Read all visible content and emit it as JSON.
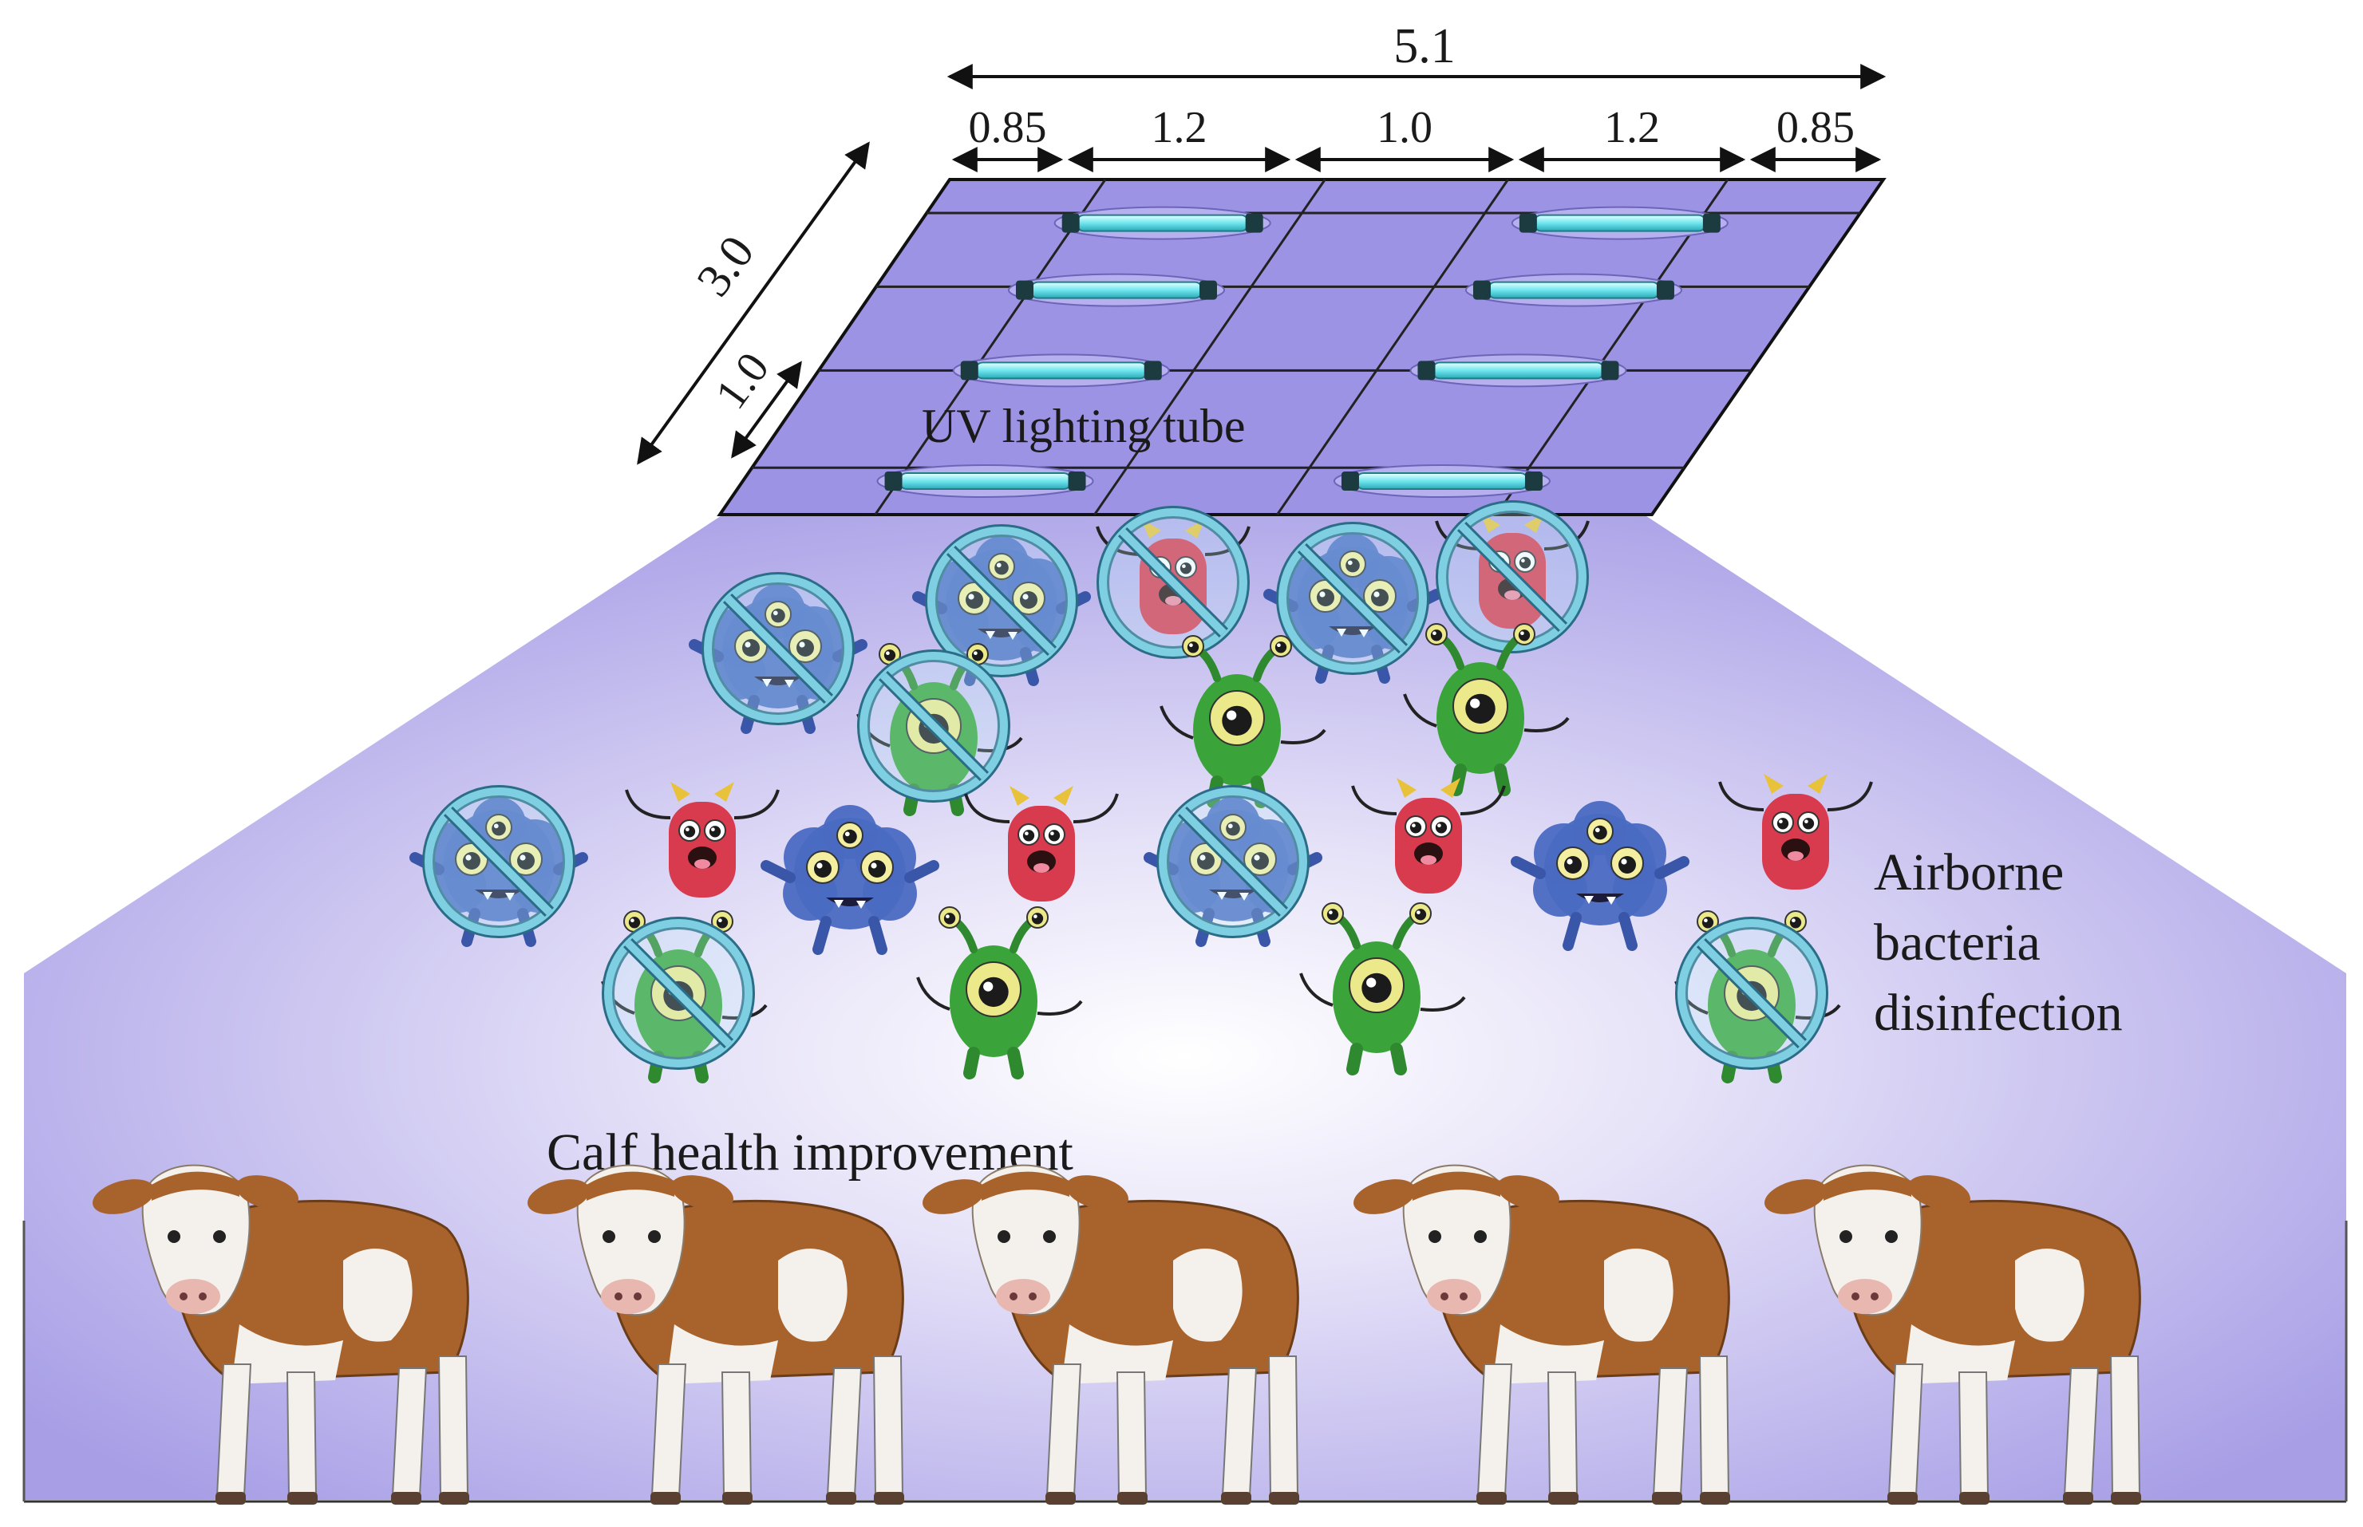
{
  "diagram": {
    "labels": {
      "uv_tube": "UV lighting tube",
      "airborne_line1": "Airborne",
      "airborne_line2": "bacteria",
      "airborne_line3": "disinfection",
      "calf_health": "Calf health improvement"
    },
    "dimensions": {
      "total_width": "5.1",
      "segments": [
        "0.85",
        "1.2",
        "1.0",
        "1.2",
        "0.85"
      ],
      "depth": "3.0",
      "row_spacing": "1.0"
    },
    "colors": {
      "panel": "#9d93e4",
      "room": "#a79ee6",
      "tube": "#7ff0f3",
      "prohibit": "#7fcfe3"
    },
    "icons": {
      "tube": "uv-tube-icon",
      "microbe": "microbe-icon",
      "prohibit": "prohibit-icon",
      "calf": "calf-icon"
    }
  }
}
